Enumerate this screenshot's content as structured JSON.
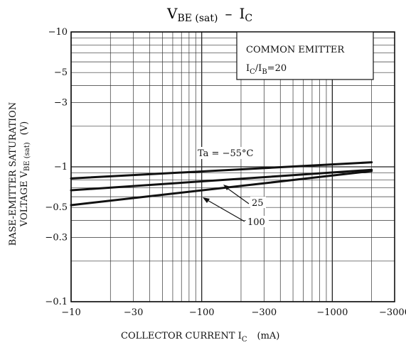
{
  "chart_data": {
    "type": "line",
    "title_main": "V",
    "title_sub": "BE (sat)",
    "title_sep": "–",
    "title_main2": "I",
    "title_sub2": "C",
    "xlabel_main": "COLLECTOR CURRENT  I",
    "xlabel_sub": "C",
    "xlabel_unit": "(mA)",
    "ylabel_line1": "BASE-EMITTER SATURATION",
    "ylabel_line2_a": "VOLTAGE  V",
    "ylabel_line2_sub": "BE (sat)",
    "ylabel_line2_unit": "(V)",
    "x_scale": "log",
    "y_scale": "log",
    "xlim": [
      -10,
      -3000
    ],
    "ylim": [
      -0.1,
      -10
    ],
    "x_ticks": [
      {
        "value": -10,
        "label": "−10"
      },
      {
        "value": -30,
        "label": "−30"
      },
      {
        "value": -100,
        "label": "−100"
      },
      {
        "value": -300,
        "label": "−300"
      },
      {
        "value": -1000,
        "label": "−1000"
      },
      {
        "value": -3000,
        "label": "−3000"
      }
    ],
    "y_ticks": [
      {
        "value": -0.1,
        "label": "−0.1"
      },
      {
        "value": -0.3,
        "label": "−0.3"
      },
      {
        "value": -0.5,
        "label": "−0.5"
      },
      {
        "value": -1,
        "label": "−1"
      },
      {
        "value": -3,
        "label": "−3"
      },
      {
        "value": -5,
        "label": "−5"
      },
      {
        "value": -10,
        "label": "−10"
      }
    ],
    "grid": true,
    "legend_box": {
      "line1": "COMMON EMITTER",
      "line2_a": "I",
      "line2_sub_a": "C",
      "line2_b": "/I",
      "line2_sub_b": "B",
      "line2_c": "=20"
    },
    "series": [
      {
        "label": "Ta = −55°C",
        "x": [
          -10,
          -2000
        ],
        "y": [
          -0.82,
          -1.08
        ]
      },
      {
        "label": "25",
        "x": [
          -10,
          -2000
        ],
        "y": [
          -0.67,
          -0.95
        ]
      },
      {
        "label": "100",
        "x": [
          -10,
          -2000
        ],
        "y": [
          -0.52,
          -0.93
        ]
      }
    ]
  }
}
